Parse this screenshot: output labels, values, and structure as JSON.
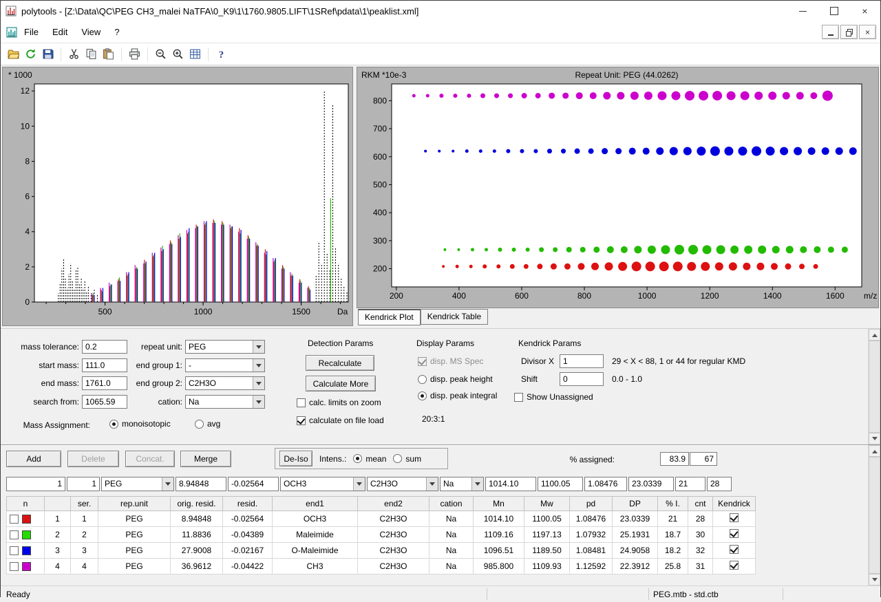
{
  "window": {
    "title": "polytools - [Z:\\Data\\QC\\PEG CH3_malei NaTFA\\0_K9\\1\\1760.9805.LIFT\\1SRef\\pdata\\1\\peaklist.xml]",
    "controls": {
      "minimize": "minimize",
      "maximize": "maximize",
      "close": "×"
    }
  },
  "menu": {
    "items": [
      "File",
      "Edit",
      "View",
      "?"
    ]
  },
  "toolbar": {
    "buttons": [
      "open",
      "refresh",
      "save",
      "cut",
      "copy",
      "paste",
      "print",
      "zoom-out",
      "zoom-in",
      "peak-table",
      "help"
    ]
  },
  "tabs": [
    {
      "label": "Kendrick Plot",
      "active": true
    },
    {
      "label": "Kendrick Table",
      "active": false
    }
  ],
  "chart_data": [
    {
      "type": "bar",
      "name": "ms-spectrum",
      "title": "",
      "ylabel": "* 1000",
      "xlabel": "Da",
      "xlim": [
        140,
        1740
      ],
      "ylim": [
        0,
        12.4
      ],
      "yticks": [
        0,
        2,
        4,
        6,
        8,
        10,
        12
      ],
      "xticks": [
        500,
        1000,
        1500
      ],
      "series": [
        {
          "name": "CH3",
          "color": "#cc00cc",
          "start": 433,
          "step": 44,
          "heights": [
            0.5,
            0.8,
            1.1,
            1.2,
            1.7,
            2.1,
            2.2,
            2.8,
            3.1,
            3.3,
            3.8,
            4.1,
            4.2,
            4.6,
            4.5,
            4.4,
            4.4,
            4.0,
            3.6,
            3.4,
            2.8,
            2.5,
            1.9,
            1.7,
            1.1,
            0.8
          ]
        },
        {
          "name": "OCH3",
          "color": "#dd1111",
          "start": 437,
          "step": 44,
          "heights": [
            0.4,
            0.7,
            0.9,
            1.3,
            1.5,
            1.9,
            2.4,
            2.6,
            2.9,
            3.5,
            3.6,
            3.9,
            4.4,
            4.4,
            4.7,
            4.6,
            4.2,
            4.2,
            3.8,
            3.2,
            3.0,
            2.3,
            2.1,
            1.5,
            1.3,
            0.9
          ]
        },
        {
          "name": "Maleimide",
          "color": "#22bb00",
          "start": 441,
          "step": 44,
          "heights": [
            0.5,
            0.6,
            1.0,
            1.4,
            1.6,
            2.0,
            2.2,
            2.7,
            3.2,
            3.4,
            3.9,
            4.0,
            4.3,
            4.5,
            4.6,
            4.5,
            4.3,
            3.9,
            3.7,
            3.3,
            2.7,
            2.4,
            2.0,
            1.6,
            1.2,
            0.8
          ]
        },
        {
          "name": "O-Maleimide",
          "color": "#0000dd",
          "start": 445,
          "step": 44,
          "heights": [
            0.4,
            0.8,
            1.0,
            1.2,
            1.7,
            1.9,
            2.3,
            2.8,
            3.0,
            3.3,
            3.7,
            4.2,
            4.3,
            4.6,
            4.5,
            4.4,
            4.3,
            4.1,
            3.6,
            3.2,
            2.9,
            2.5,
            1.9,
            1.5,
            1.1,
            0.7
          ]
        }
      ],
      "extra_peaks": [
        [
          1650,
          5.9,
          "#22bb00"
        ]
      ],
      "unassigned": {
        "color": "#000000",
        "dashed": true,
        "peaks": [
          [
            262,
            0.5
          ],
          [
            271,
            1.1
          ],
          [
            280,
            1.9
          ],
          [
            289,
            2.5
          ],
          [
            298,
            1.4
          ],
          [
            307,
            0.8
          ],
          [
            316,
            1.6
          ],
          [
            325,
            2.2
          ],
          [
            334,
            1.2
          ],
          [
            343,
            0.7
          ],
          [
            352,
            1.8
          ],
          [
            361,
            2.0
          ],
          [
            370,
            1.0
          ],
          [
            379,
            1.4
          ],
          [
            388,
            0.8
          ],
          [
            397,
            1.2
          ],
          [
            406,
            0.6
          ],
          [
            415,
            0.9
          ],
          [
            429,
            0.5
          ],
          [
            445,
            0.7
          ],
          [
            461,
            0.4
          ],
          [
            1576,
            1.5
          ],
          [
            1590,
            3.4
          ],
          [
            1604,
            2.2
          ],
          [
            1618,
            12.0
          ],
          [
            1632,
            2.8
          ],
          [
            1646,
            1.8
          ],
          [
            1661,
            11.2
          ],
          [
            1675,
            3.1
          ],
          [
            1690,
            2.2
          ],
          [
            1704,
            1.4
          ],
          [
            1718,
            0.9
          ],
          [
            1733,
            0.6
          ]
        ]
      }
    },
    {
      "type": "scatter",
      "name": "kendrick-plot",
      "title": "Repeat Unit: PEG (44.0262)",
      "ylabel": "RKM *10e-3",
      "xlabel": "m/z",
      "xlim": [
        185,
        1685
      ],
      "ylim": [
        135,
        860
      ],
      "yticks": [
        200,
        300,
        400,
        500,
        600,
        700,
        800
      ],
      "xticks": [
        200,
        400,
        600,
        800,
        1000,
        1200,
        1400,
        1600
      ],
      "series": [
        {
          "name": "CH3",
          "color": "#cc00cc",
          "y": 818,
          "start": 256,
          "step": 44,
          "sizes": [
            2.5,
            2.5,
            3,
            3,
            3,
            3.5,
            3.5,
            3.5,
            4,
            4,
            4.5,
            4.5,
            5,
            5,
            5.5,
            5.5,
            6,
            6,
            6.5,
            6.5,
            7,
            7,
            7,
            6.5,
            6.5,
            6,
            6,
            5.5,
            5.5,
            5,
            7.5
          ]
        },
        {
          "name": "O-Maleimide",
          "color": "#0000dd",
          "y": 620,
          "start": 293,
          "step": 44,
          "sizes": [
            2,
            2,
            2,
            2.5,
            2.5,
            2.5,
            3,
            3,
            3,
            3.5,
            3.5,
            4,
            4,
            4.5,
            4.5,
            5,
            5,
            5.5,
            6,
            6,
            6.5,
            7,
            6.5,
            6.5,
            7,
            6.5,
            6,
            6,
            5.5,
            5.5,
            5.5,
            5.5
          ]
        },
        {
          "name": "Maleimide",
          "color": "#22bb00",
          "y": 268,
          "start": 355,
          "step": 44,
          "sizes": [
            2,
            2,
            2.5,
            2.5,
            3,
            3,
            3,
            3.5,
            3.5,
            4,
            4,
            4.5,
            5,
            5,
            5.5,
            6,
            6.5,
            7,
            7,
            6.5,
            6.5,
            6,
            6,
            6,
            5.5,
            5.5,
            5,
            5,
            4.5,
            4.5
          ]
        },
        {
          "name": "OCH3",
          "color": "#dd1111",
          "y": 208,
          "start": 350,
          "step": 44,
          "sizes": [
            2,
            2.5,
            2.5,
            3,
            3,
            3.5,
            3.5,
            4,
            4.5,
            4.5,
            5,
            5.5,
            6,
            6.5,
            7,
            7,
            7,
            7,
            6.5,
            6.5,
            6,
            6,
            5.5,
            5.5,
            5,
            4.5,
            4,
            3.5
          ]
        }
      ]
    }
  ],
  "params": {
    "fields_left": [
      {
        "label": "mass tolerance:",
        "value": "0.2"
      },
      {
        "label": "start mass:",
        "value": "111.0"
      },
      {
        "label": "end mass:",
        "value": "1761.0"
      },
      {
        "label": "search from:",
        "value": "1065.59"
      }
    ],
    "fields_mid": [
      {
        "label": "repeat unit:",
        "value": "PEG"
      },
      {
        "label": "end group 1:",
        "value": "-"
      },
      {
        "label": "end group 2:",
        "value": "C2H3O"
      },
      {
        "label": "cation:",
        "value": "Na"
      }
    ],
    "mass_assignment": {
      "label": "Mass Assignment:",
      "options": [
        {
          "label": "monoisotopic",
          "checked": true
        },
        {
          "label": "avg",
          "checked": false
        }
      ]
    },
    "detection": {
      "title": "Detection Params",
      "recalculate": "Recalculate",
      "calculate_more": "Calculate More",
      "calc_limits": {
        "label": "calc. limits on zoom",
        "checked": false
      },
      "calc_on_load": {
        "label": "calculate on  file load",
        "checked": true
      }
    },
    "display": {
      "title": "Display Params",
      "ms_spec": {
        "label": "disp. MS Spec",
        "checked": true,
        "disabled": true
      },
      "peak_height": {
        "label": "disp. peak height",
        "checked": false
      },
      "peak_integral": {
        "label": "disp. peak integral",
        "checked": true
      },
      "ratio": "20:3:1"
    },
    "kendrick": {
      "title": "Kendrick Params",
      "divisor_label": "Divisor X",
      "divisor_value": "1",
      "divisor_hint": "29 < X < 88, 1 or 44 for regular KMD",
      "shift_label": "Shift",
      "shift_value": "0",
      "shift_hint": "0.0 - 1.0",
      "show_unassigned": {
        "label": "Show Unassigned",
        "checked": false
      }
    }
  },
  "bottom": {
    "add": "Add",
    "delete": "Delete",
    "concat": "Concat.",
    "merge": "Merge",
    "deiso": "De-Iso",
    "intens_label": "Intens.:",
    "mean": {
      "label": "mean",
      "checked": true
    },
    "sum": {
      "label": "sum",
      "checked": false
    },
    "assigned_label": "% assigned:",
    "assigned_pct": "83.9",
    "assigned_cnt": "67",
    "edit_row": [
      "1",
      "1",
      "PEG",
      "8.94848",
      "-0.02564",
      "OCH3",
      "C2H3O",
      "Na",
      "1014.10",
      "1100.05",
      "1.08476",
      "23.0339",
      "21",
      "28"
    ],
    "table": {
      "headers": [
        "n",
        "",
        "ser.",
        "rep.unit",
        "orig. resid.",
        "resid.",
        "end1",
        "end2",
        "cation",
        "Mn",
        "Mw",
        "pd",
        "DP",
        "% I.",
        "cnt",
        "Kendrick"
      ],
      "rows": [
        {
          "color": "#dd1111",
          "checked": false,
          "n": "1",
          "ser": "1",
          "rep_unit": "PEG",
          "orig_resid": "8.94848",
          "resid": "-0.02564",
          "end1": "OCH3",
          "end2": "C2H3O",
          "cation": "Na",
          "mn": "1014.10",
          "mw": "1100.05",
          "pd": "1.08476",
          "dp": "23.0339",
          "pct_i": "21",
          "cnt": "28",
          "kendrick": true
        },
        {
          "color": "#22dd00",
          "checked": false,
          "n": "2",
          "ser": "2",
          "rep_unit": "PEG",
          "orig_resid": "11.8836",
          "resid": "-0.04389",
          "end1": "Maleimide",
          "end2": "C2H3O",
          "cation": "Na",
          "mn": "1109.16",
          "mw": "1197.13",
          "pd": "1.07932",
          "dp": "25.1931",
          "pct_i": "18.7",
          "cnt": "30",
          "kendrick": true
        },
        {
          "color": "#0000ee",
          "checked": false,
          "n": "3",
          "ser": "3",
          "rep_unit": "PEG",
          "orig_resid": "27.9008",
          "resid": "-0.02167",
          "end1": "O-Maleimide",
          "end2": "C2H3O",
          "cation": "Na",
          "mn": "1096.51",
          "mw": "1189.50",
          "pd": "1.08481",
          "dp": "24.9058",
          "pct_i": "18.2",
          "cnt": "32",
          "kendrick": true
        },
        {
          "color": "#cc00cc",
          "checked": false,
          "n": "4",
          "ser": "4",
          "rep_unit": "PEG",
          "orig_resid": "36.9612",
          "resid": "-0.04422",
          "end1": "CH3",
          "end2": "C2H3O",
          "cation": "Na",
          "mn": "985.800",
          "mw": "1109.93",
          "pd": "1.12592",
          "dp": "22.3912",
          "pct_i": "25.8",
          "cnt": "31",
          "kendrick": true
        }
      ]
    }
  },
  "status": {
    "ready": "Ready",
    "file": "PEG.mtb - std.ctb"
  }
}
